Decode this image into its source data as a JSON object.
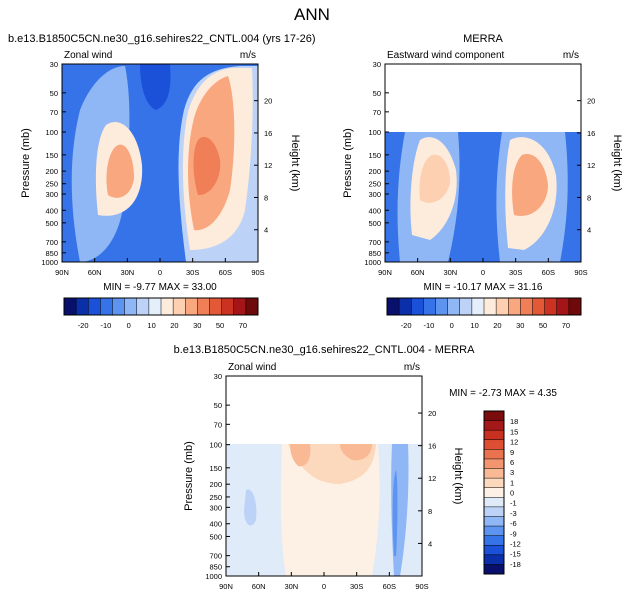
{
  "page_title": "ANN",
  "colors": {
    "panel_scale": [
      "#08106b",
      "#0a2fa8",
      "#1b50d8",
      "#3673e8",
      "#5d94f0",
      "#8fb6f5",
      "#bcd3f7",
      "#e5eefb",
      "#fdebdc",
      "#fcd0b0",
      "#f8a77e",
      "#f07f58",
      "#e35837",
      "#cc3222",
      "#a31516",
      "#6e0a0a"
    ],
    "diff_scale": [
      "#08106b",
      "#0a2fa8",
      "#1b50d8",
      "#3673e8",
      "#5d94f0",
      "#8fb6f5",
      "#bcd3f7",
      "#dfebf9",
      "#fdf0e4",
      "#fcd8bd",
      "#f9b994",
      "#f39670",
      "#ea724f",
      "#dd4e33",
      "#c8301f",
      "#a4181a",
      "#7a0c0c"
    ]
  },
  "chart_data": [
    {
      "type": "heatmap",
      "title": "b.e13.B1850C5CN.ne30_g16.sehires22_CNTL.004 (yrs 17-26)",
      "subtitle_left": "Zonal wind",
      "subtitle_right": "m/s",
      "ylabel": "Pressure (mb)",
      "ylabel_right": "Height (km)",
      "y_scale": "log",
      "y_ticks": [
        "30",
        "50",
        "70",
        "100",
        "150",
        "200",
        "250",
        "300",
        "400",
        "500",
        "700",
        "850",
        "1000"
      ],
      "y_ticks_right": [
        "20",
        "16",
        "12",
        "8",
        "4"
      ],
      "x_ticks": [
        "90N",
        "60N",
        "30N",
        "0",
        "30S",
        "60S",
        "90S"
      ],
      "stats": "MIN =  -9.77   MAX =  33.00",
      "colorbar_labels": [
        "-20",
        "-10",
        "0",
        "10",
        "20",
        "30",
        "50",
        "70"
      ],
      "field": "cntl"
    },
    {
      "type": "heatmap",
      "title": "MERRA",
      "subtitle_left": "Eastward wind component",
      "subtitle_right": "m/s",
      "ylabel": "Pressure (mb)",
      "ylabel_right": "Height (km)",
      "y_scale": "log",
      "y_ticks": [
        "30",
        "50",
        "70",
        "100",
        "150",
        "200",
        "250",
        "300",
        "400",
        "500",
        "700",
        "850",
        "1000"
      ],
      "y_ticks_right": [
        "20",
        "16",
        "12",
        "8",
        "4"
      ],
      "x_ticks": [
        "90N",
        "60N",
        "30N",
        "0",
        "30S",
        "60S",
        "90S"
      ],
      "stats": "MIN = -10.17   MAX =  31.16",
      "colorbar_labels": [
        "-20",
        "-10",
        "0",
        "10",
        "20",
        "30",
        "50",
        "70"
      ],
      "field": "merra"
    },
    {
      "type": "heatmap",
      "title": "b.e13.B1850C5CN.ne30_g16.sehires22_CNTL.004 - MERRA",
      "subtitle_left": "Zonal wind",
      "subtitle_right": "m/s",
      "ylabel": "Pressure (mb)",
      "ylabel_right": "Height (km)",
      "y_scale": "log",
      "y_ticks": [
        "30",
        "50",
        "70",
        "100",
        "150",
        "200",
        "250",
        "300",
        "400",
        "500",
        "700",
        "850",
        "1000"
      ],
      "y_ticks_right": [
        "20",
        "16",
        "12",
        "8",
        "4"
      ],
      "x_ticks": [
        "90N",
        "60N",
        "30N",
        "0",
        "30S",
        "60S",
        "90S"
      ],
      "stats": "MIN =  -2.73   MAX =   4.35",
      "colorbar_labels": [
        "18",
        "15",
        "12",
        "9",
        "6",
        "3",
        "1",
        "0",
        "-1",
        "-3",
        "-6",
        "-9",
        "-12",
        "-15",
        "-18"
      ],
      "field": "diff"
    }
  ]
}
